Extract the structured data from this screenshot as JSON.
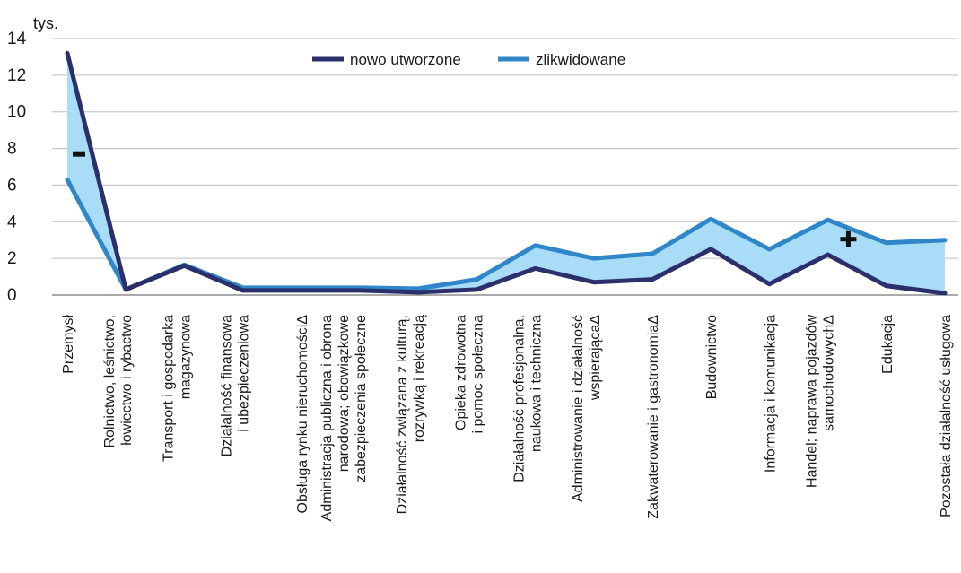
{
  "chart_data": {
    "type": "line",
    "unit_label": "tys.",
    "ylim": [
      0,
      14
    ],
    "y_ticks": [
      "0",
      "2",
      "4",
      "6",
      "8",
      "10",
      "12",
      "14"
    ],
    "grid": true,
    "legend_position": "top",
    "categories": [
      [
        "Przemysł"
      ],
      [
        "Rolnictwo, leśnictwo,",
        "łowiectwo i rybactwo"
      ],
      [
        "Transport i gospodarka",
        "magazynowa"
      ],
      [
        "Działalność finansowa",
        "i ubezpieczeniowa"
      ],
      [
        "Obsługa rynku nieruchomościΔ"
      ],
      [
        "Administracja publiczna i obrona",
        "narodowa; obowiązkowe",
        "zabezpieczenia społeczne"
      ],
      [
        "Działalność związana z kulturą,",
        "rozrywką i rekreacją"
      ],
      [
        "Opieka zdrowotna",
        "i pomoc społeczna"
      ],
      [
        "Działalność profesjonalna,",
        "naukowa i techniczna"
      ],
      [
        "Administrowanie i działalność",
        "wspierającaΔ"
      ],
      [
        "Zakwaterowanie i gastronomiaΔ"
      ],
      [
        "Budownictwo"
      ],
      [
        "Informacja i komunikacja"
      ],
      [
        "Handel; naprawa pojazdów",
        "samochodowychΔ"
      ],
      [
        "Edukacja"
      ],
      [
        "Pozostała działalność usługowa"
      ]
    ],
    "series": [
      {
        "name": "nowo utworzone",
        "color": "#2b2f6b",
        "values": [
          13.2,
          0.3,
          1.6,
          0.25,
          0.25,
          0.25,
          0.15,
          0.3,
          1.45,
          0.7,
          0.85,
          2.5,
          0.6,
          2.2,
          0.5,
          0.1
        ]
      },
      {
        "name": "zlikwidowane",
        "color": "#2f86c8",
        "values": [
          6.3,
          0.3,
          1.65,
          0.4,
          0.4,
          0.4,
          0.35,
          0.85,
          2.7,
          2.0,
          2.25,
          4.15,
          2.5,
          4.1,
          2.85,
          3.0
        ]
      }
    ],
    "fill_color": "#a9dcf7",
    "annotations": [
      {
        "text": "-",
        "x_index": 0.2,
        "y": 7.7
      },
      {
        "text": "+",
        "x_index": 13.35,
        "y": 3.05
      }
    ]
  }
}
